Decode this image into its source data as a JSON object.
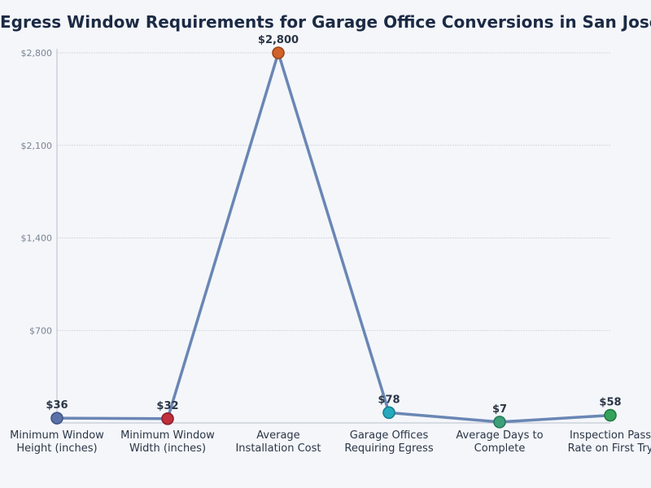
{
  "chart_data": {
    "type": "line",
    "title": "Egress Window Requirements for Garage Office Conversions in San Jose",
    "xlabel": "",
    "ylabel": "",
    "categories": [
      [
        "Minimum Window",
        "Height (inches)"
      ],
      [
        "Minimum Window",
        "Width (inches)"
      ],
      [
        "Average",
        "Installation Cost"
      ],
      [
        "Garage Offices",
        "Requiring Egress"
      ],
      [
        "Average Days to",
        "Complete"
      ],
      [
        "Inspection Pass",
        "Rate on First Try"
      ]
    ],
    "values": [
      36,
      32,
      2800,
      78,
      7,
      58
    ],
    "value_labels": [
      "$36",
      "$32",
      "$2,800",
      "$78",
      "$7",
      "$58"
    ],
    "ylim": [
      0,
      2800
    ],
    "yticks": [
      700,
      1400,
      2100,
      2800
    ],
    "ytick_labels": [
      "$700",
      "$1,400",
      "$2,100",
      "$2,800"
    ],
    "grid": true,
    "line_color": "#6a86b4",
    "point_colors": [
      "#5b72a8",
      "#c0303c",
      "#d0622a",
      "#27a9bd",
      "#3ea07a",
      "#35a35c"
    ],
    "point_stroke_colors": [
      "#3e5488",
      "#8e1e28",
      "#9e4418",
      "#17808f",
      "#277858",
      "#227a40"
    ]
  }
}
